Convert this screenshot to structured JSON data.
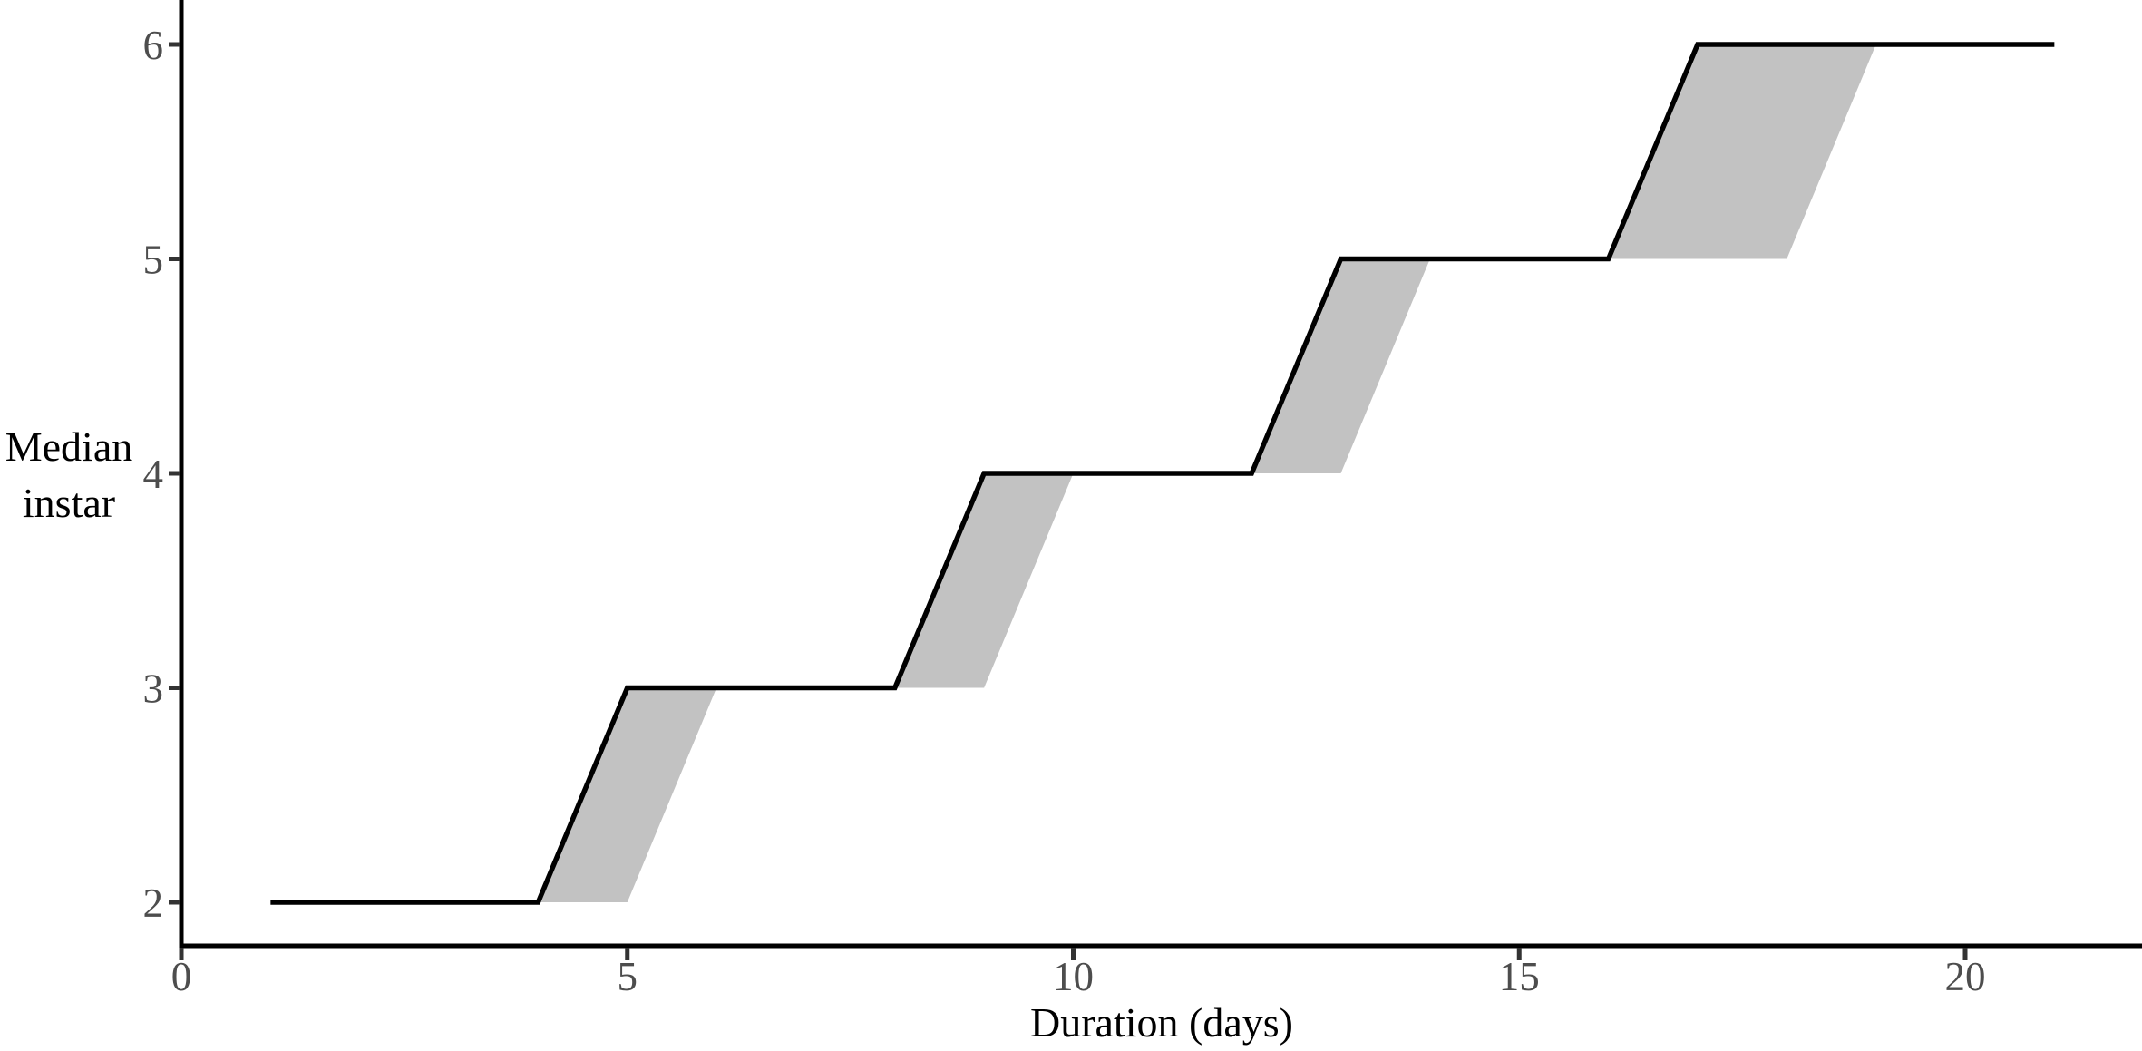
{
  "figure": {
    "background": "#ffffff"
  },
  "chart_data": {
    "type": "line",
    "subtype": "step-line-with-ribbon",
    "title": "",
    "xlabel": "Duration (days)",
    "ylabel": "Median instar",
    "ylabel_lines": [
      "Median",
      "instar"
    ],
    "x_ticks": [
      0,
      5,
      10,
      15,
      20
    ],
    "x_tick_labels": [
      "0",
      "5",
      "10",
      "15",
      "20"
    ],
    "y_ticks": [
      2,
      3,
      4,
      5,
      6
    ],
    "y_tick_labels": [
      "2",
      "3",
      "4",
      "5",
      "6"
    ],
    "xlim": [
      0,
      22
    ],
    "ylim": [
      2,
      6
    ],
    "grid": false,
    "legend_position": "none",
    "series": [
      {
        "name": "median-instar-step-line",
        "type": "line",
        "color": "#000000",
        "points": [
          [
            1,
            2
          ],
          [
            4,
            2
          ],
          [
            5,
            3
          ],
          [
            8,
            3
          ],
          [
            9,
            4
          ],
          [
            12,
            4
          ],
          [
            13,
            5
          ],
          [
            16,
            5
          ],
          [
            17,
            6
          ],
          [
            21,
            6
          ]
        ]
      },
      {
        "name": "uncertainty-ribbon",
        "type": "area",
        "color": "#c2c2c2",
        "polygons": [
          [
            [
              4,
              2
            ],
            [
              5,
              3
            ],
            [
              6,
              3
            ],
            [
              5,
              2
            ]
          ],
          [
            [
              8,
              3
            ],
            [
              9,
              4
            ],
            [
              10,
              4
            ],
            [
              9,
              3
            ]
          ],
          [
            [
              12,
              4
            ],
            [
              13,
              5
            ],
            [
              14,
              5
            ],
            [
              13,
              4
            ]
          ],
          [
            [
              16,
              5
            ],
            [
              17,
              6
            ],
            [
              19,
              6
            ],
            [
              18,
              5
            ]
          ]
        ]
      }
    ],
    "colors": {
      "axis_line": "#000000",
      "tick_mark": "#333333",
      "tick_label": "#4d4d4d",
      "axis_title": "#000000",
      "line": "#000000",
      "ribbon": "#c2c2c2",
      "background": "#ffffff"
    }
  }
}
